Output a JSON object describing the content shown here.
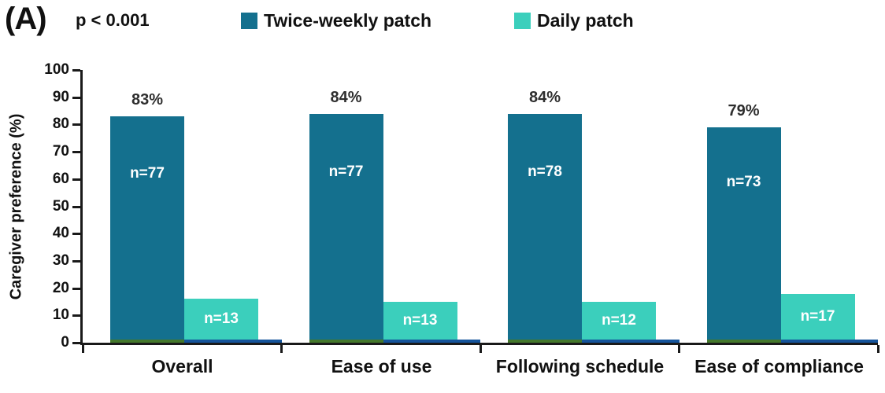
{
  "panel_label": "(A)",
  "p_value": "p < 0.001",
  "legend": [
    {
      "label": "Twice-weekly patch",
      "color": "#14708E"
    },
    {
      "label": "Daily patch",
      "color": "#3BCFBC"
    }
  ],
  "chart_data": {
    "type": "bar",
    "title": "",
    "xlabel": "",
    "ylabel": "Caregiver preference (%)",
    "ylim": [
      0,
      100
    ],
    "yticks": [
      0,
      10,
      20,
      30,
      40,
      50,
      60,
      70,
      80,
      90,
      100
    ],
    "grid": false,
    "legend_position": "top",
    "categories": [
      "Overall",
      "Ease of use",
      "Following schedule",
      "Ease of compliance"
    ],
    "series": [
      {
        "name": "Twice-weekly patch",
        "color": "#14708E",
        "values": [
          83,
          84,
          84,
          79
        ],
        "value_labels": [
          "83%",
          "84%",
          "84%",
          "79%"
        ],
        "n_labels": [
          "n=77",
          "n=77",
          "n=78",
          "n=73"
        ],
        "base_strip_color": "#44782C"
      },
      {
        "name": "Daily patch",
        "color": "#3BCFBC",
        "values": [
          16,
          15,
          15,
          18
        ],
        "value_labels": [
          "",
          "",
          "",
          ""
        ],
        "n_labels": [
          "n=13",
          "n=13",
          "n=12",
          "n=17"
        ],
        "base_strip_color": "#15549B"
      }
    ],
    "annotation": "p < 0.001"
  },
  "colors": {
    "axis": "#1a1a1a",
    "text": "#111111",
    "n_label_text": "#ffffff"
  }
}
